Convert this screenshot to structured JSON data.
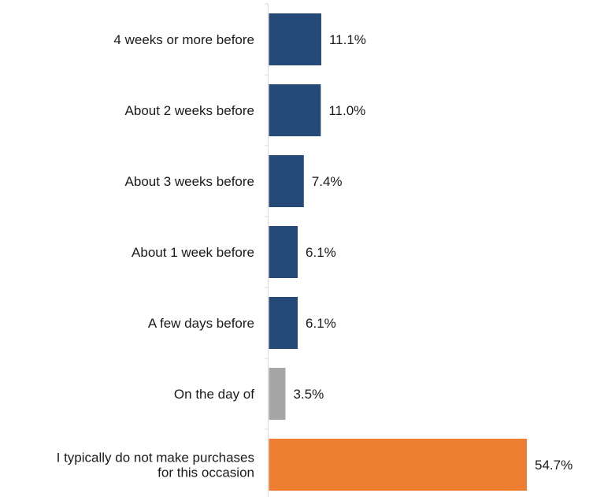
{
  "chart_data": {
    "type": "bar",
    "orientation": "horizontal",
    "categories": [
      [
        "4 weeks or more before"
      ],
      [
        "About 2 weeks before"
      ],
      [
        "About 3 weeks before"
      ],
      [
        "About 1 week before"
      ],
      [
        "A few days before"
      ],
      [
        "On the day of"
      ],
      [
        "I typically do not make purchases",
        "for this occasion"
      ]
    ],
    "values": [
      11.1,
      11.0,
      7.4,
      6.1,
      6.1,
      3.5,
      54.7
    ],
    "value_labels": [
      "11.1%",
      "11.0%",
      "7.4%",
      "6.1%",
      "6.1%",
      "3.5%",
      "54.7%"
    ],
    "colors": [
      "#254A77",
      "#254A77",
      "#254A77",
      "#254A77",
      "#254A77",
      "#A6A6A6",
      "#ED7D31"
    ],
    "axis_color": "#D9D9D9",
    "title": "",
    "xlabel": "",
    "ylabel": "",
    "xlim": [
      0,
      54.7
    ],
    "grid": false,
    "legend": "none"
  }
}
